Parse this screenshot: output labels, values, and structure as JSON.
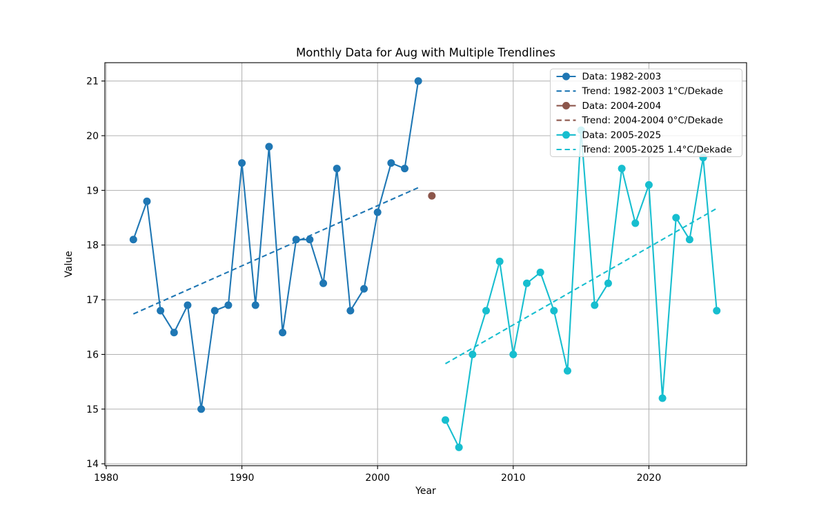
{
  "page": {
    "title": "Monthly Data for Aug with Multiple Trendlines"
  },
  "chart_data": {
    "type": "line",
    "title": "Monthly Data for Aug with Multiple Trendlines",
    "xlabel": "Year",
    "ylabel": "Value",
    "xlim": [
      1979.9,
      2027.2
    ],
    "ylim": [
      13.965,
      21.335
    ],
    "xticks": [
      1980,
      1990,
      2000,
      2010,
      2020
    ],
    "yticks": [
      14,
      15,
      16,
      17,
      18,
      19,
      20,
      21
    ],
    "grid": true,
    "grid_color": "#b0b0b0",
    "frame_color": "#000000",
    "legend_position": "upper right",
    "series": [
      {
        "name": "Data: 1982-2003",
        "style": "line+marker",
        "color": "#1f77b4",
        "x": [
          1982,
          1983,
          1984,
          1985,
          1986,
          1987,
          1988,
          1989,
          1990,
          1991,
          1992,
          1993,
          1994,
          1995,
          1996,
          1997,
          1998,
          1999,
          2000,
          2001,
          2002,
          2003
        ],
        "values": [
          18.1,
          18.8,
          16.8,
          16.4,
          16.9,
          15.0,
          16.8,
          16.9,
          19.5,
          16.9,
          19.8,
          16.4,
          18.1,
          18.1,
          17.3,
          19.4,
          16.8,
          17.2,
          18.6,
          19.5,
          19.4,
          21.0
        ]
      },
      {
        "name": "Trend: 1982-2003 1°C/Dekade",
        "style": "dashed",
        "color": "#1f77b4",
        "x": [
          1982,
          2003
        ],
        "values": [
          16.74,
          19.05
        ]
      },
      {
        "name": "Data: 2004-2004",
        "style": "line+marker",
        "color": "#8c564b",
        "x": [
          2004
        ],
        "values": [
          18.9
        ]
      },
      {
        "name": "Trend: 2004-2004 0°C/Dekade",
        "style": "dashed",
        "color": "#8c564b",
        "x": [
          2004,
          2004
        ],
        "values": [
          18.9,
          18.9
        ]
      },
      {
        "name": "Data: 2005-2025",
        "style": "line+marker",
        "color": "#17becf",
        "x": [
          2005,
          2006,
          2007,
          2008,
          2009,
          2010,
          2011,
          2012,
          2013,
          2014,
          2015,
          2016,
          2017,
          2018,
          2019,
          2020,
          2021,
          2022,
          2023,
          2024,
          2025
        ],
        "values": [
          14.8,
          14.3,
          16.0,
          16.8,
          17.7,
          16.0,
          17.3,
          17.5,
          16.8,
          15.7,
          20.1,
          16.9,
          17.3,
          19.4,
          18.4,
          19.1,
          15.2,
          18.5,
          18.1,
          19.6,
          16.8
        ]
      },
      {
        "name": "Trend: 2005-2025 1.4°C/Dekade",
        "style": "dashed",
        "color": "#17becf",
        "x": [
          2005,
          2025
        ],
        "values": [
          15.83,
          18.67
        ]
      }
    ]
  }
}
